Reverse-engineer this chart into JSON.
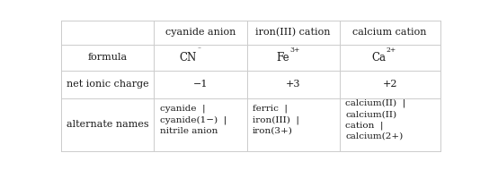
{
  "figsize": [
    5.44,
    1.9
  ],
  "dpi": 100,
  "bg_color": "#ffffff",
  "col_headers": [
    "cyanide anion",
    "iron(III) cation",
    "calcium cation"
  ],
  "row_labels": [
    "formula",
    "net ionic charge",
    "alternate names"
  ],
  "formula_bases": [
    "CN",
    "Fe",
    "Ca"
  ],
  "formula_sups": [
    "⁻",
    "3+",
    "2+"
  ],
  "charges": [
    "−1",
    "+3",
    "+2"
  ],
  "alt_texts": [
    "cyanide  |\ncyanide(1−)  |\nnitrile anion",
    "ferric  |\niron(III)  |\niron(3+)",
    "calcium(II)  |\ncalcium(II)\ncation  |\ncalcium(2+)"
  ],
  "text_color": "#1a1a1a",
  "line_color": "#cccccc",
  "col_bounds": [
    0.0,
    0.245,
    0.49,
    0.735,
    1.0
  ],
  "row_bounds": [
    1.0,
    0.815,
    0.615,
    0.405,
    0.0
  ],
  "fontsize": 8.0,
  "sup_fontsize": 5.5
}
